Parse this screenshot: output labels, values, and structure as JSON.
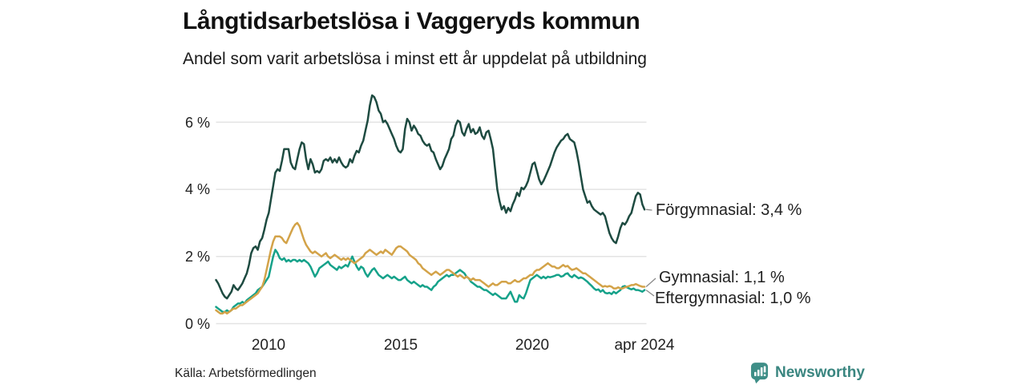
{
  "header": {
    "title": "Långtidsarbetslösa i Vaggeryds kommun",
    "subtitle": "Andel som varit arbetslösa i minst ett år uppdelat på utbildning"
  },
  "source_note": "Källa: Arbetsförmedlingen",
  "branding": {
    "name": "Newsworthy",
    "color": "#3a8680",
    "icon_color": "#3e8e87"
  },
  "colors": {
    "grid": "#e3e3e3",
    "leader": "#8a8a8a",
    "text": "#222222"
  },
  "chart_data": {
    "type": "line",
    "title": "Långtidsarbetslösa i Vaggeryds kommun",
    "subtitle": "Andel som varit arbetslösa i minst ett år uppdelat på utbildning",
    "unit": "%",
    "x_start": "2008-01",
    "x_end": "2024-04",
    "x_interval": "monthly",
    "grid": "horizontal",
    "legend_position": "right-end-labels",
    "ylim": [
      0,
      7
    ],
    "y_ticks": [
      0,
      2,
      4,
      6
    ],
    "y_tick_labels": [
      "0 %",
      "2 %",
      "4 %",
      "6 %"
    ],
    "x_tick_labels": [
      "2010",
      "2015",
      "2020",
      "apr 2024"
    ],
    "series": [
      {
        "name": "Förgymnasial",
        "end_label": "Förgymnasial: 3,4 %",
        "end_value": 3.4,
        "color": "#1e4b41",
        "values": [
          1.3,
          1.2,
          1.05,
          0.9,
          0.8,
          0.75,
          0.85,
          0.95,
          1.15,
          1.05,
          1.0,
          1.1,
          1.2,
          1.35,
          1.5,
          1.75,
          2.1,
          2.25,
          2.3,
          2.2,
          2.45,
          2.55,
          2.8,
          3.1,
          3.3,
          3.7,
          4.1,
          4.5,
          4.6,
          4.55,
          4.85,
          5.2,
          5.2,
          5.2,
          4.8,
          4.65,
          4.6,
          4.9,
          5.2,
          5.4,
          5.35,
          4.9,
          4.6,
          4.9,
          4.75,
          4.5,
          4.55,
          4.5,
          4.6,
          4.85,
          4.9,
          4.85,
          4.95,
          4.8,
          4.9,
          4.8,
          4.95,
          4.8,
          4.7,
          4.65,
          4.7,
          4.9,
          4.8,
          5.0,
          5.15,
          5.1,
          5.3,
          5.45,
          5.75,
          6.05,
          6.5,
          6.8,
          6.75,
          6.6,
          6.35,
          6.25,
          6.0,
          6.05,
          5.95,
          5.8,
          5.65,
          5.5,
          5.3,
          5.15,
          5.1,
          5.2,
          5.8,
          6.1,
          6.0,
          5.75,
          5.9,
          5.8,
          5.65,
          5.6,
          5.45,
          5.35,
          5.3,
          5.35,
          5.15,
          5.1,
          4.9,
          4.75,
          4.6,
          4.7,
          4.9,
          5.05,
          5.2,
          5.5,
          5.6,
          5.9,
          6.05,
          6.0,
          5.7,
          5.6,
          5.8,
          5.95,
          5.7,
          5.8,
          5.65,
          5.7,
          5.85,
          5.6,
          5.5,
          5.7,
          5.75,
          5.5,
          5.2,
          4.6,
          4.0,
          3.65,
          3.4,
          3.5,
          3.3,
          3.45,
          3.35,
          3.55,
          3.7,
          3.9,
          3.8,
          4.05,
          4.0,
          4.1,
          4.25,
          4.5,
          4.75,
          4.8,
          4.55,
          4.3,
          4.15,
          4.25,
          4.4,
          4.55,
          4.7,
          4.9,
          5.1,
          5.25,
          5.35,
          5.45,
          5.5,
          5.6,
          5.65,
          5.5,
          5.45,
          5.4,
          5.15,
          4.8,
          4.4,
          4.0,
          3.8,
          3.6,
          3.65,
          3.5,
          3.4,
          3.35,
          3.3,
          3.25,
          3.3,
          3.2,
          2.95,
          2.7,
          2.55,
          2.45,
          2.4,
          2.6,
          2.85,
          3.0,
          2.95,
          3.05,
          3.2,
          3.3,
          3.55,
          3.8,
          3.9,
          3.85,
          3.55,
          3.4
        ]
      },
      {
        "name": "Gymnasial",
        "end_label": "Gymnasial: 1,1 %",
        "end_value": 1.1,
        "color": "#d3a349",
        "values": [
          0.4,
          0.35,
          0.3,
          0.3,
          0.35,
          0.3,
          0.35,
          0.4,
          0.45,
          0.45,
          0.5,
          0.55,
          0.55,
          0.6,
          0.65,
          0.7,
          0.75,
          0.8,
          0.85,
          0.9,
          1.0,
          1.1,
          1.3,
          1.6,
          1.9,
          2.2,
          2.45,
          2.6,
          2.6,
          2.6,
          2.55,
          2.45,
          2.4,
          2.55,
          2.7,
          2.85,
          2.95,
          3.0,
          2.9,
          2.7,
          2.5,
          2.35,
          2.25,
          2.15,
          2.1,
          2.15,
          2.1,
          2.05,
          2.0,
          2.05,
          2.1,
          2.0,
          1.95,
          2.0,
          2.05,
          2.0,
          1.95,
          1.9,
          1.95,
          1.9,
          1.95,
          1.9,
          1.85,
          1.8,
          1.85,
          1.9,
          1.95,
          2.0,
          2.1,
          2.15,
          2.2,
          2.15,
          2.1,
          2.05,
          2.1,
          2.15,
          2.1,
          2.2,
          2.15,
          2.1,
          2.05,
          2.15,
          2.25,
          2.3,
          2.3,
          2.25,
          2.2,
          2.15,
          2.05,
          2.0,
          1.95,
          1.9,
          1.8,
          1.75,
          1.65,
          1.6,
          1.55,
          1.5,
          1.45,
          1.5,
          1.55,
          1.5,
          1.45,
          1.5,
          1.55,
          1.6,
          1.6,
          1.55,
          1.5,
          1.45,
          1.4,
          1.45,
          1.4,
          1.35,
          1.4,
          1.35,
          1.3,
          1.35,
          1.3,
          1.3,
          1.3,
          1.25,
          1.2,
          1.15,
          1.1,
          1.15,
          1.2,
          1.15,
          1.15,
          1.2,
          1.25,
          1.25,
          1.25,
          1.2,
          1.2,
          1.25,
          1.3,
          1.25,
          1.25,
          1.3,
          1.35,
          1.35,
          1.4,
          1.45,
          1.45,
          1.55,
          1.6,
          1.6,
          1.65,
          1.7,
          1.75,
          1.8,
          1.75,
          1.7,
          1.7,
          1.65,
          1.65,
          1.7,
          1.75,
          1.7,
          1.72,
          1.65,
          1.6,
          1.62,
          1.65,
          1.6,
          1.55,
          1.5,
          1.5,
          1.45,
          1.4,
          1.35,
          1.3,
          1.25,
          1.2,
          1.15,
          1.1,
          1.12,
          1.1,
          1.12,
          1.1,
          1.05,
          1.05,
          1.08,
          1.05,
          1.05,
          1.08,
          1.1,
          1.12,
          1.15,
          1.15,
          1.18,
          1.15,
          1.12,
          1.1,
          1.1
        ]
      },
      {
        "name": "Eftergymnasial",
        "end_label": "Eftergymnasial: 1,0 %",
        "end_value": 1.0,
        "color": "#16a28a",
        "values": [
          0.5,
          0.45,
          0.4,
          0.35,
          0.35,
          0.4,
          0.35,
          0.4,
          0.5,
          0.55,
          0.6,
          0.6,
          0.65,
          0.6,
          0.7,
          0.75,
          0.8,
          0.85,
          0.9,
          1.0,
          1.05,
          1.1,
          1.2,
          1.3,
          1.4,
          1.7,
          2.0,
          2.2,
          2.1,
          1.95,
          1.9,
          1.95,
          1.85,
          1.9,
          1.85,
          1.9,
          1.9,
          1.85,
          1.9,
          1.85,
          1.9,
          1.85,
          1.8,
          1.7,
          1.55,
          1.4,
          1.5,
          1.65,
          1.7,
          1.75,
          1.8,
          1.85,
          1.75,
          1.7,
          1.65,
          1.6,
          1.7,
          1.65,
          1.7,
          1.75,
          1.7,
          1.85,
          2.0,
          1.85,
          1.7,
          1.6,
          1.7,
          1.65,
          1.5,
          1.4,
          1.5,
          1.6,
          1.65,
          1.55,
          1.45,
          1.4,
          1.35,
          1.4,
          1.45,
          1.4,
          1.35,
          1.4,
          1.35,
          1.3,
          1.3,
          1.35,
          1.4,
          1.3,
          1.25,
          1.2,
          1.25,
          1.2,
          1.15,
          1.1,
          1.15,
          1.1,
          1.1,
          1.05,
          1.0,
          1.1,
          1.15,
          1.25,
          1.3,
          1.35,
          1.4,
          1.45,
          1.4,
          1.45,
          1.45,
          1.5,
          1.55,
          1.6,
          1.55,
          1.5,
          1.4,
          1.35,
          1.25,
          1.2,
          1.15,
          1.1,
          1.1,
          1.05,
          1.0,
          1.0,
          0.95,
          0.9,
          0.85,
          0.9,
          0.85,
          0.8,
          0.75,
          0.75,
          0.75,
          0.85,
          0.95,
          0.8,
          0.65,
          0.65,
          0.85,
          0.78,
          0.75,
          0.9,
          1.1,
          1.3,
          1.35,
          1.4,
          1.45,
          1.4,
          1.35,
          1.4,
          1.35,
          1.4,
          1.38,
          1.4,
          1.42,
          1.45,
          1.45,
          1.4,
          1.42,
          1.48,
          1.5,
          1.42,
          1.38,
          1.45,
          1.4,
          1.35,
          1.38,
          1.35,
          1.3,
          1.25,
          1.18,
          1.12,
          1.05,
          1.0,
          1.02,
          0.95,
          1.0,
          0.92,
          0.9,
          0.92,
          0.88,
          0.95,
          0.9,
          0.95,
          1.0,
          1.1,
          1.12,
          1.08,
          1.05,
          1.02,
          1.05,
          1.0,
          1.0,
          0.98,
          0.95,
          1.0
        ]
      }
    ]
  }
}
